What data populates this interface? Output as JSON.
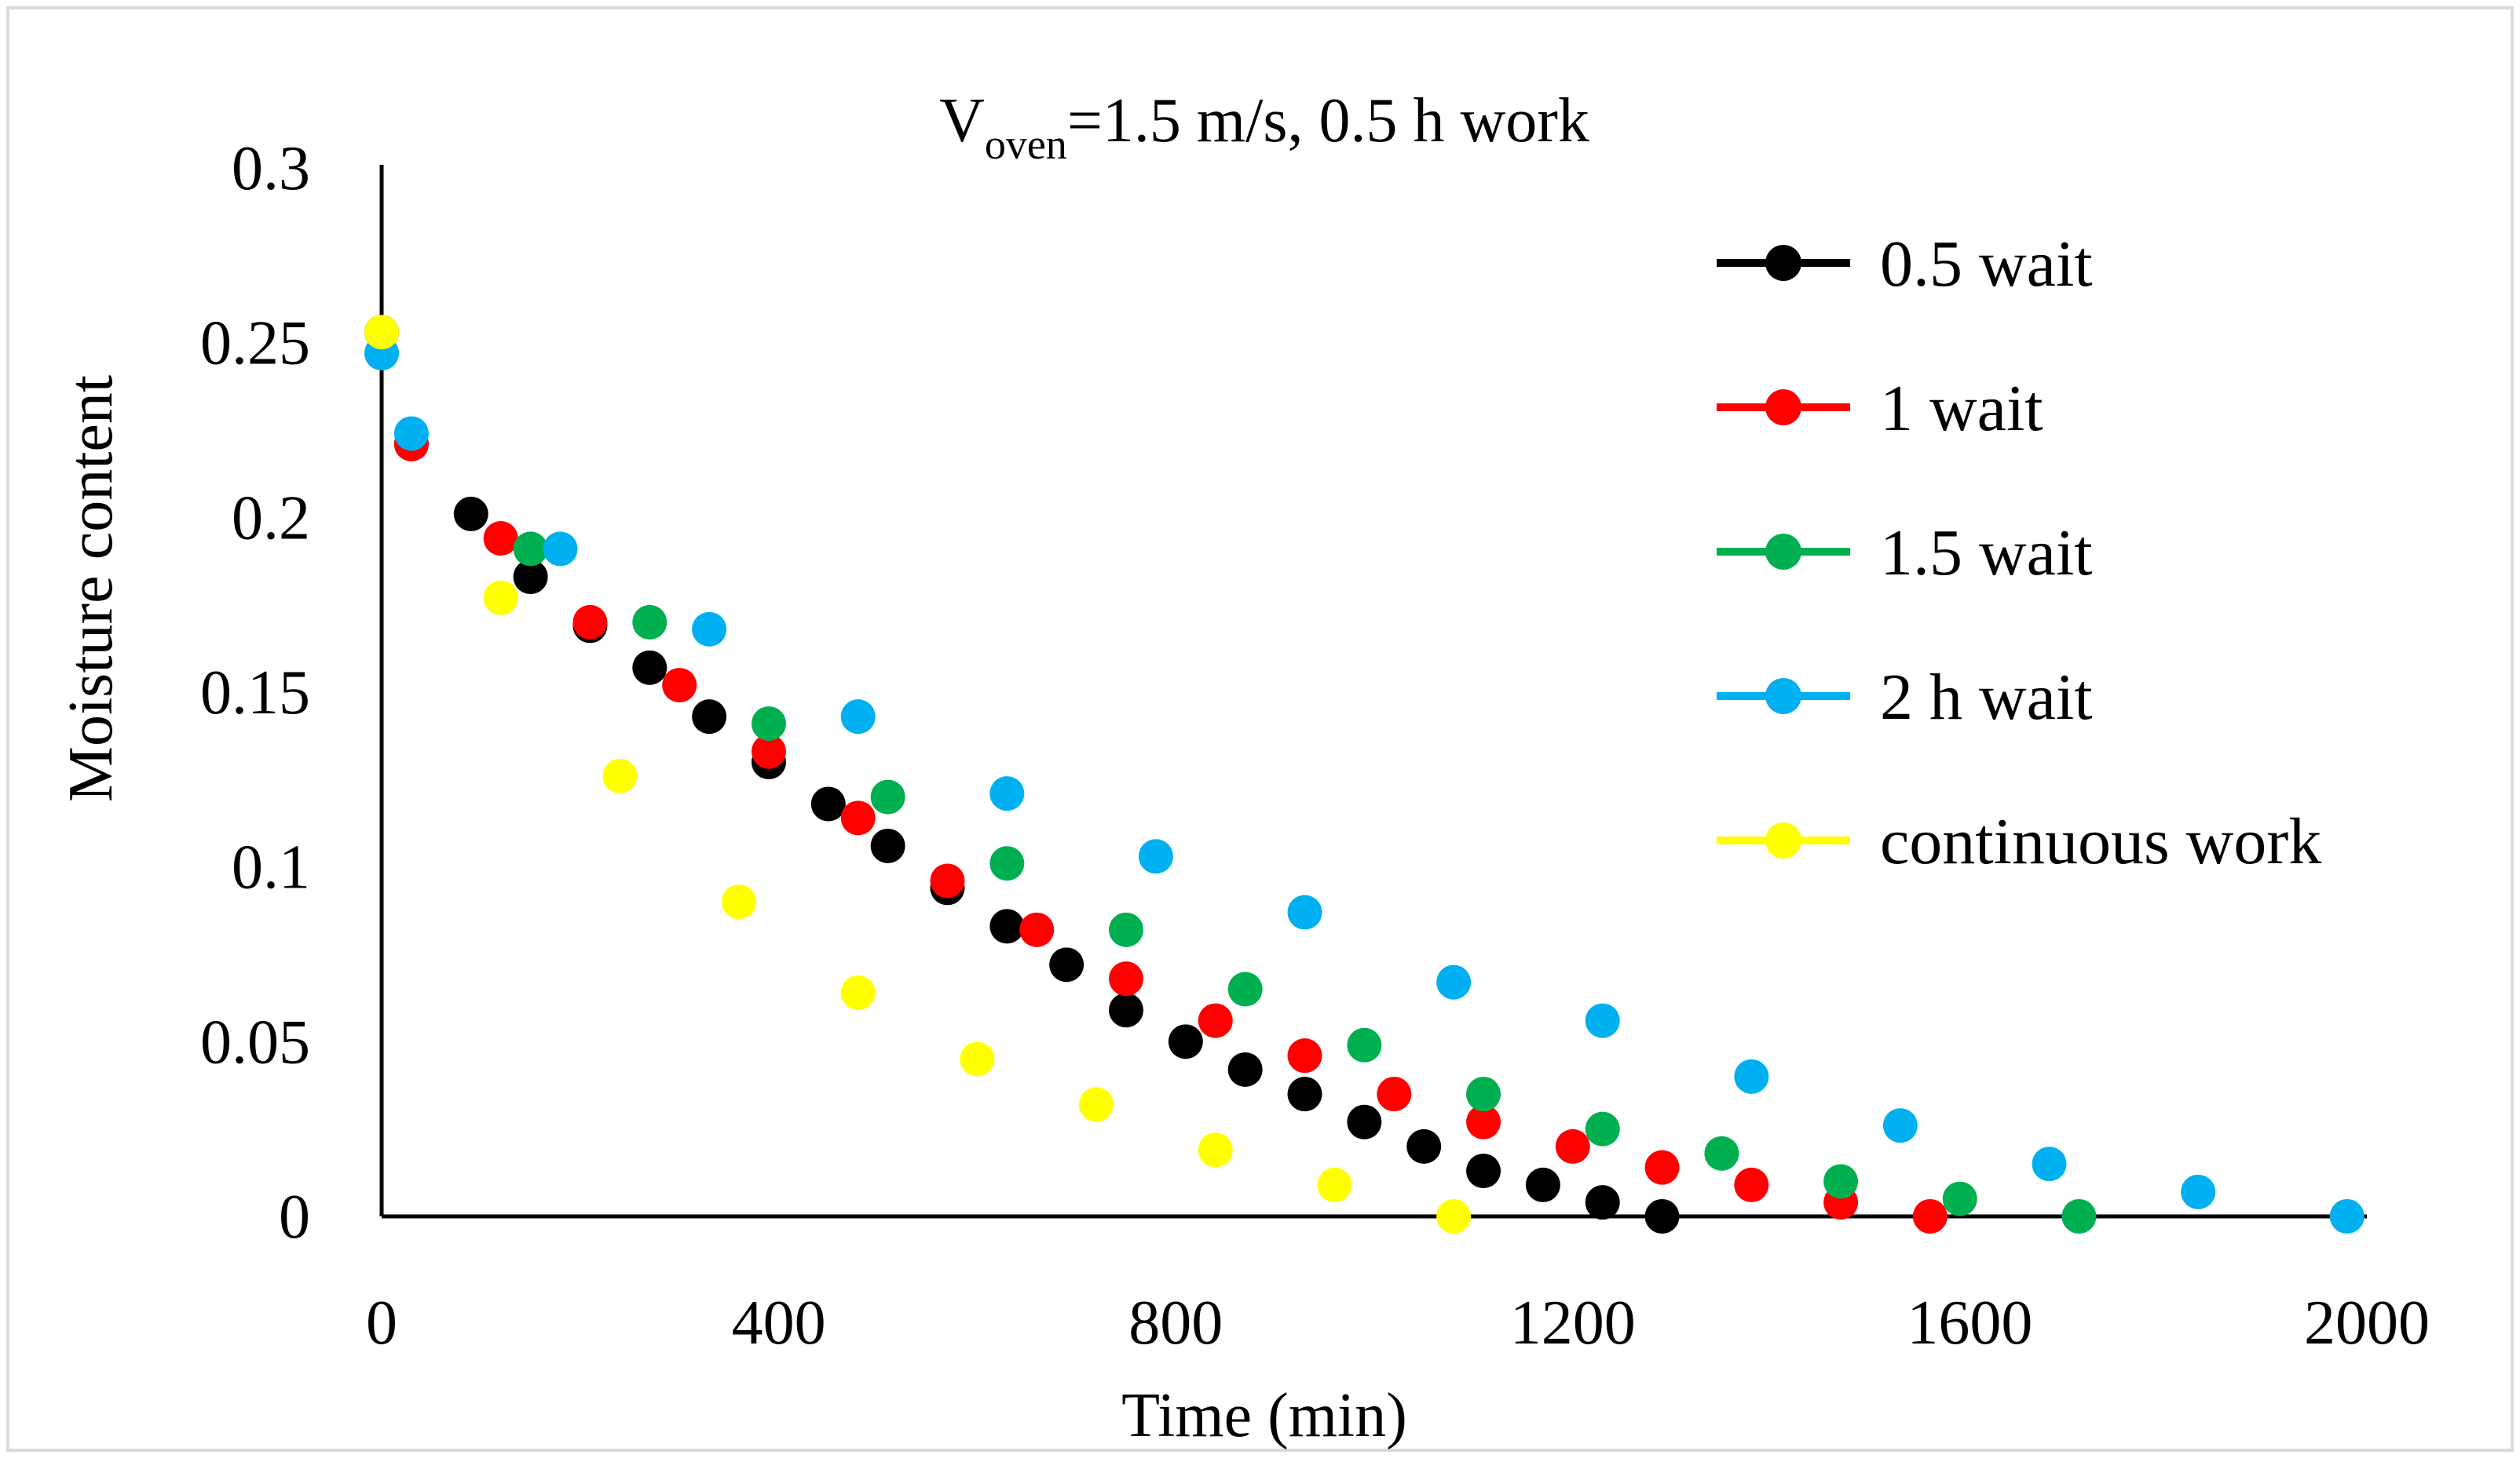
{
  "chart_data": {
    "type": "scatter",
    "title": {
      "prefix": "V",
      "subscript": "oven",
      "suffix": "=1.5 m/s, 0.5 h work"
    },
    "xlabel": "Time (min)",
    "ylabel": "Moisture content",
    "xlim": [
      0,
      2000
    ],
    "ylim": [
      0,
      0.3
    ],
    "x_ticks": [
      0,
      400,
      800,
      1200,
      1600,
      2000
    ],
    "x_tick_labels": [
      "0",
      "400",
      "800",
      "1200",
      "1600",
      "2000"
    ],
    "y_ticks": [
      0,
      0.05,
      0.1,
      0.15,
      0.2,
      0.25,
      0.3
    ],
    "y_tick_labels": [
      "0",
      "0.05",
      "0.1",
      "0.15",
      "0.2",
      "0.25",
      "0.3"
    ],
    "grid": false,
    "legend_position": "right",
    "series": [
      {
        "name": "0.5 wait",
        "color": "#000000",
        "points": [
          [
            0,
            0.253
          ],
          [
            30,
            0.221
          ],
          [
            90,
            0.201
          ],
          [
            150,
            0.183
          ],
          [
            210,
            0.169
          ],
          [
            270,
            0.157
          ],
          [
            330,
            0.143
          ],
          [
            390,
            0.13
          ],
          [
            450,
            0.118
          ],
          [
            510,
            0.106
          ],
          [
            570,
            0.094
          ],
          [
            630,
            0.083
          ],
          [
            690,
            0.072
          ],
          [
            750,
            0.059
          ],
          [
            810,
            0.05
          ],
          [
            870,
            0.042
          ],
          [
            930,
            0.035
          ],
          [
            990,
            0.027
          ],
          [
            1050,
            0.02
          ],
          [
            1110,
            0.013
          ],
          [
            1170,
            0.009
          ],
          [
            1230,
            0.004
          ],
          [
            1290,
            0.0
          ]
        ]
      },
      {
        "name": "1 wait",
        "color": "#ff0000",
        "points": [
          [
            30,
            0.221
          ],
          [
            120,
            0.194
          ],
          [
            210,
            0.17
          ],
          [
            300,
            0.152
          ],
          [
            390,
            0.133
          ],
          [
            480,
            0.114
          ],
          [
            570,
            0.096
          ],
          [
            660,
            0.082
          ],
          [
            750,
            0.068
          ],
          [
            840,
            0.056
          ],
          [
            930,
            0.046
          ],
          [
            1020,
            0.035
          ],
          [
            1110,
            0.027
          ],
          [
            1200,
            0.02
          ],
          [
            1290,
            0.014
          ],
          [
            1380,
            0.009
          ],
          [
            1470,
            0.004
          ],
          [
            1560,
            0.0
          ]
        ]
      },
      {
        "name": "1.5 wait",
        "color": "#00b050",
        "points": [
          [
            150,
            0.191
          ],
          [
            270,
            0.17
          ],
          [
            390,
            0.141
          ],
          [
            510,
            0.12
          ],
          [
            630,
            0.101
          ],
          [
            750,
            0.082
          ],
          [
            870,
            0.065
          ],
          [
            990,
            0.049
          ],
          [
            1110,
            0.035
          ],
          [
            1230,
            0.025
          ],
          [
            1350,
            0.018
          ],
          [
            1470,
            0.01
          ],
          [
            1590,
            0.005
          ],
          [
            1710,
            0.0
          ]
        ]
      },
      {
        "name": "2 h wait",
        "color": "#00b0f0",
        "points": [
          [
            0,
            0.247
          ],
          [
            30,
            0.224
          ],
          [
            180,
            0.191
          ],
          [
            330,
            0.168
          ],
          [
            480,
            0.143
          ],
          [
            630,
            0.121
          ],
          [
            780,
            0.103
          ],
          [
            930,
            0.087
          ],
          [
            1080,
            0.067
          ],
          [
            1230,
            0.056
          ],
          [
            1380,
            0.04
          ],
          [
            1530,
            0.026
          ],
          [
            1680,
            0.015
          ],
          [
            1830,
            0.007
          ],
          [
            1980,
            0.0
          ]
        ]
      },
      {
        "name": "continuous work",
        "color": "#ffff00",
        "points": [
          [
            0,
            0.253
          ],
          [
            120,
            0.177
          ],
          [
            240,
            0.126
          ],
          [
            360,
            0.09
          ],
          [
            480,
            0.064
          ],
          [
            600,
            0.045
          ],
          [
            720,
            0.032
          ],
          [
            840,
            0.019
          ],
          [
            960,
            0.009
          ],
          [
            1080,
            0.0
          ]
        ]
      }
    ]
  }
}
